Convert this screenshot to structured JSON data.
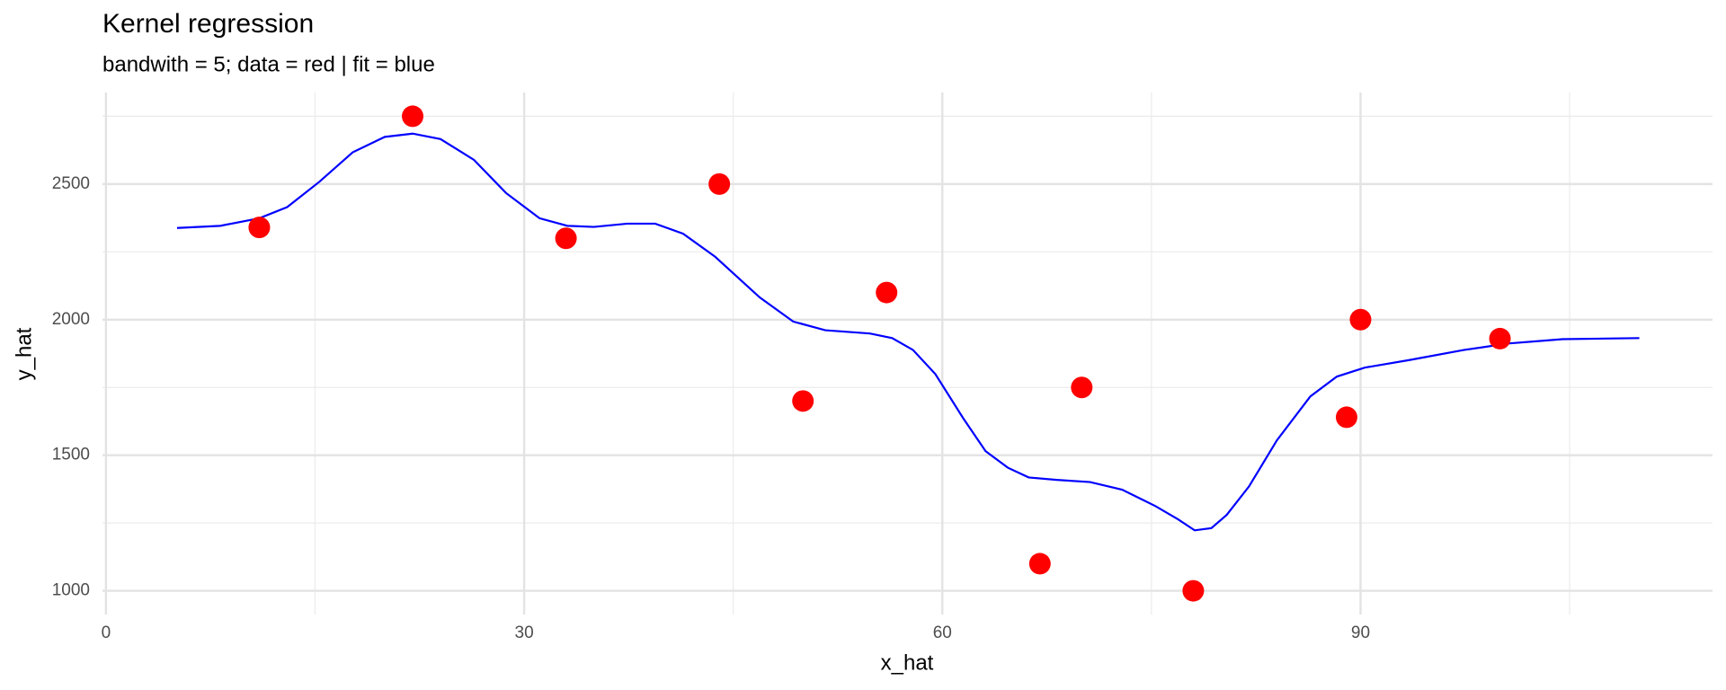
{
  "chart_data": {
    "type": "scatter",
    "title": "Kernel regression",
    "subtitle": "bandwith = 5; data = red | fit = blue",
    "x_label": "x_hat",
    "y_label": "y_hat",
    "xlim": [
      -0.25,
      115.25
    ],
    "ylim": [
      912.5,
      2837.5
    ],
    "xticks": [
      0,
      30,
      60,
      90
    ],
    "yticks": [
      1000,
      1500,
      2000,
      2500
    ],
    "x_minor_grid": [
      15,
      45,
      75,
      105
    ],
    "y_minor_grid": [
      1250,
      1750,
      2250,
      2750
    ],
    "grid": true,
    "series": [
      {
        "kind": "points",
        "color": "#ff0000",
        "x": [
          11,
          22,
          33,
          44,
          50,
          56,
          67,
          70,
          78,
          89,
          90,
          100
        ],
        "y": [
          2340,
          2750,
          2300,
          2500,
          1700,
          2100,
          1100,
          1750,
          1000,
          1640,
          2000,
          1930
        ]
      },
      {
        "kind": "line",
        "color": "#0000ff",
        "x": [
          5.1,
          8.2,
          11,
          13,
          15.3,
          17.7,
          20,
          22,
          24,
          26.4,
          28.7,
          31.1,
          33.1,
          35,
          37.4,
          39.4,
          41.4,
          43.7,
          46.9,
          49.3,
          51.6,
          54.8,
          56.4,
          57.9,
          59.5,
          61.5,
          63.1,
          64.7,
          66.2,
          68.2,
          70.6,
          72.9,
          75.3,
          76.9,
          78.1,
          79.3,
          80.4,
          82,
          84,
          86.4,
          88.3,
          90.3,
          93.5,
          97.4,
          100.6,
          104.5,
          110
        ],
        "y": [
          2338,
          2346,
          2374,
          2415,
          2508,
          2617,
          2674,
          2686,
          2666,
          2589,
          2467,
          2374,
          2346,
          2342,
          2354,
          2354,
          2317,
          2232,
          2082,
          1993,
          1961,
          1949,
          1932,
          1888,
          1799,
          1636,
          1515,
          1454,
          1418,
          1409,
          1401,
          1373,
          1312,
          1264,
          1223,
          1231,
          1280,
          1385,
          1555,
          1717,
          1790,
          1823,
          1851,
          1888,
          1912,
          1928,
          1932
        ]
      }
    ]
  }
}
